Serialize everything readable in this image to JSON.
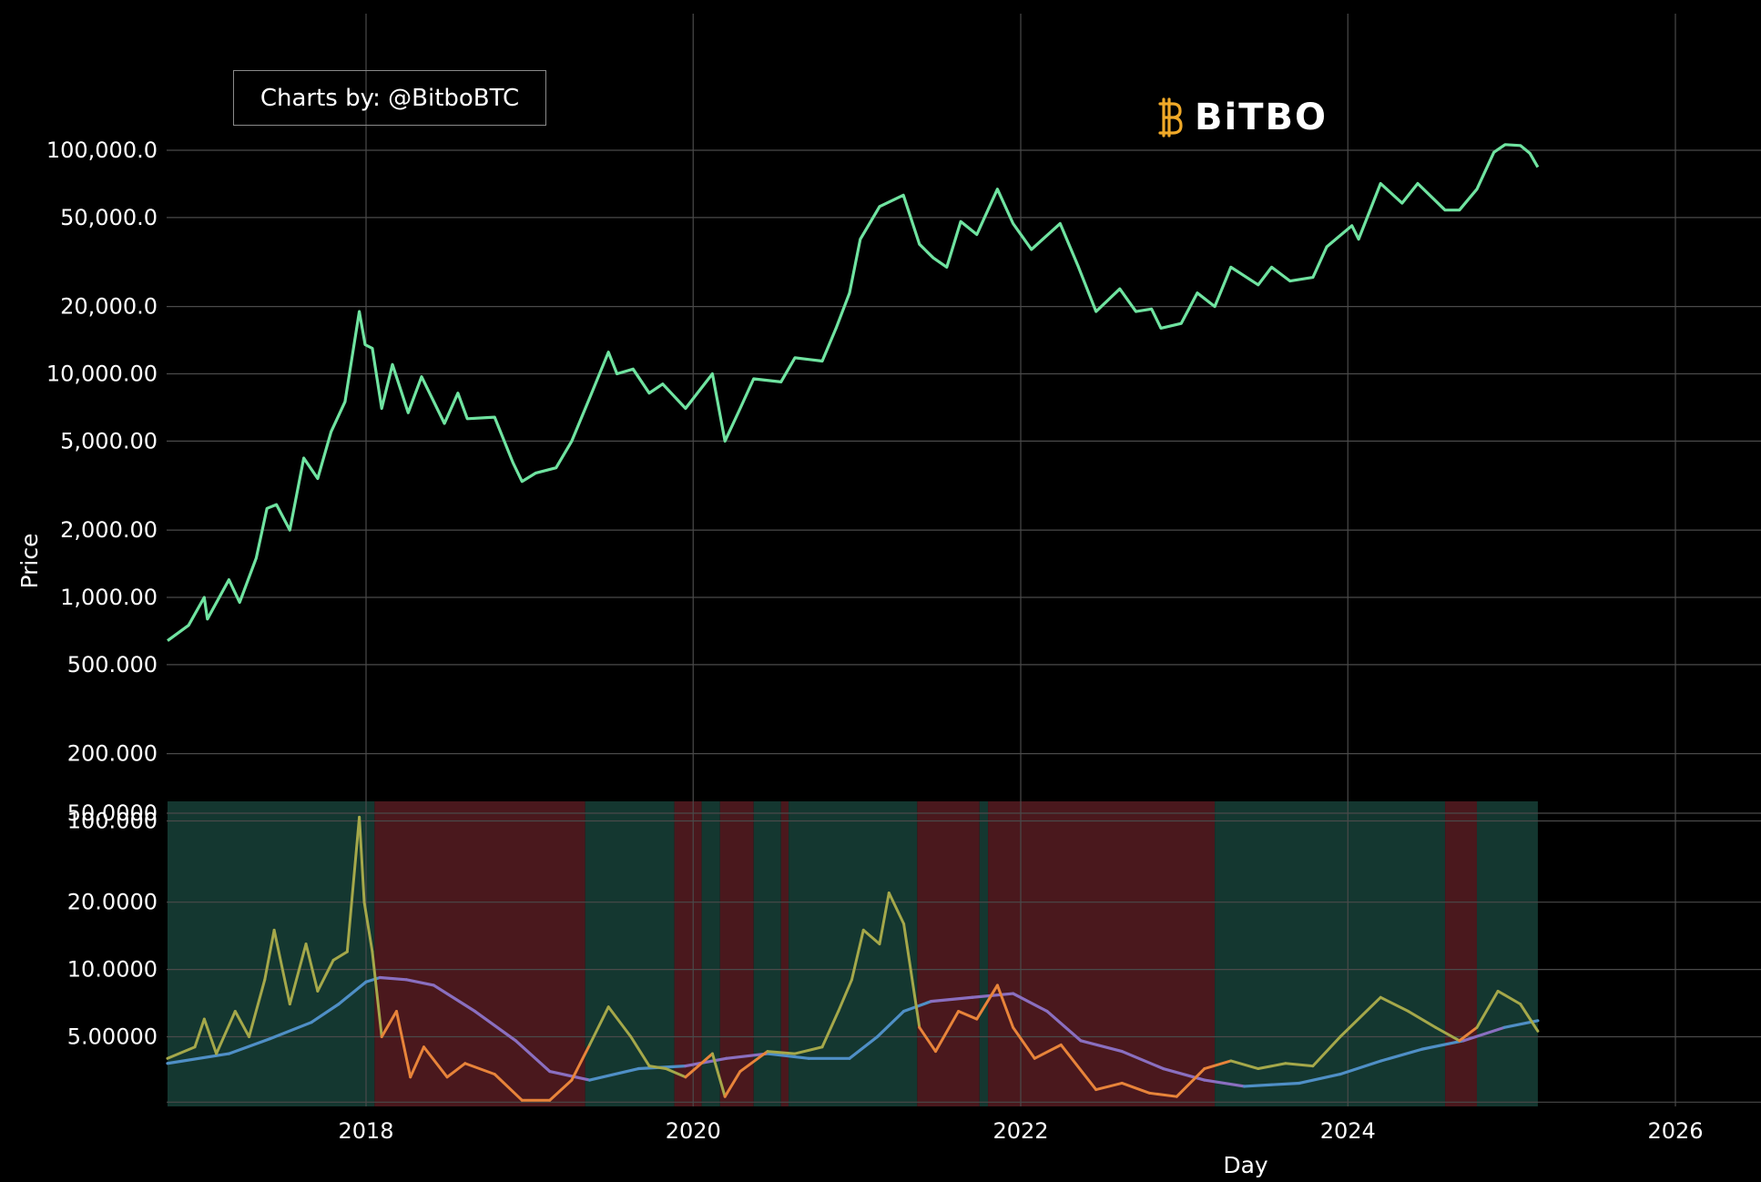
{
  "credit": "Charts by: @BitboBTC",
  "logo_text": "BiTBO",
  "colors": {
    "background": "#000000",
    "grid": "#4a4a4a",
    "price": "#6fe3a0",
    "above_band": "#a5a84a",
    "below_band": "#e8843a",
    "ma_low": "#4f8fc6",
    "ma_high": "#8a6fc0",
    "green_regime": "#143730",
    "red_regime": "#4a181d"
  },
  "chart_data": {
    "type": "line",
    "title": "",
    "xlabel": "Day",
    "ylabel": "Price",
    "x_ticks": [
      "2018",
      "2020",
      "2022",
      "2024",
      "2026"
    ],
    "x_range": [
      "2016-10-15",
      "2026-06-15"
    ],
    "price_panel": {
      "scale": "log",
      "y_ticks": [
        "100,000.0",
        "50,000.0",
        "20,000.0",
        "10,000.00",
        "5,000.00",
        "2,000.00",
        "1,000.00",
        "500.000",
        "200.000",
        "100.000"
      ],
      "series": [
        {
          "points": [
            [
              "2016-10-15",
              640
            ],
            [
              "2016-12-01",
              750
            ],
            [
              "2017-01-05",
              1000
            ],
            [
              "2017-01-12",
              800
            ],
            [
              "2017-03-01",
              1200
            ],
            [
              "2017-03-25",
              950
            ],
            [
              "2017-05-01",
              1500
            ],
            [
              "2017-05-25",
              2500
            ],
            [
              "2017-06-15",
              2600
            ],
            [
              "2017-07-15",
              2000
            ],
            [
              "2017-08-15",
              4200
            ],
            [
              "2017-09-15",
              3400
            ],
            [
              "2017-10-15",
              5500
            ],
            [
              "2017-11-15",
              7500
            ],
            [
              "2017-12-17",
              19000
            ],
            [
              "2017-12-30",
              13500
            ],
            [
              "2018-01-15",
              13000
            ],
            [
              "2018-02-05",
              7000
            ],
            [
              "2018-03-01",
              11000
            ],
            [
              "2018-04-05",
              6700
            ],
            [
              "2018-05-05",
              9700
            ],
            [
              "2018-06-25",
              6000
            ],
            [
              "2018-07-25",
              8200
            ],
            [
              "2018-08-15",
              6300
            ],
            [
              "2018-10-15",
              6400
            ],
            [
              "2018-11-25",
              4000
            ],
            [
              "2018-12-15",
              3300
            ],
            [
              "2019-01-15",
              3600
            ],
            [
              "2019-03-01",
              3800
            ],
            [
              "2019-04-05",
              5000
            ],
            [
              "2019-05-15",
              7800
            ],
            [
              "2019-06-26",
              12500
            ],
            [
              "2019-07-15",
              10000
            ],
            [
              "2019-08-20",
              10500
            ],
            [
              "2019-09-25",
              8200
            ],
            [
              "2019-10-25",
              9000
            ],
            [
              "2019-12-15",
              7000
            ],
            [
              "2020-02-13",
              10000
            ],
            [
              "2020-03-12",
              5000
            ],
            [
              "2020-04-15",
              7000
            ],
            [
              "2020-05-15",
              9500
            ],
            [
              "2020-07-15",
              9200
            ],
            [
              "2020-08-15",
              11800
            ],
            [
              "2020-10-15",
              11400
            ],
            [
              "2020-11-15",
              16000
            ],
            [
              "2020-12-15",
              23000
            ],
            [
              "2021-01-08",
              40000
            ],
            [
              "2021-02-20",
              56000
            ],
            [
              "2021-04-14",
              63000
            ],
            [
              "2021-05-20",
              38000
            ],
            [
              "2021-06-20",
              33000
            ],
            [
              "2021-07-20",
              30000
            ],
            [
              "2021-08-20",
              48000
            ],
            [
              "2021-09-25",
              42000
            ],
            [
              "2021-11-10",
              67000
            ],
            [
              "2021-12-15",
              47000
            ],
            [
              "2022-01-25",
              36000
            ],
            [
              "2022-03-30",
              47000
            ],
            [
              "2022-05-10",
              30000
            ],
            [
              "2022-06-18",
              19000
            ],
            [
              "2022-08-10",
              24000
            ],
            [
              "2022-09-15",
              19000
            ],
            [
              "2022-10-20",
              19500
            ],
            [
              "2022-11-10",
              16000
            ],
            [
              "2022-12-25",
              16800
            ],
            [
              "2023-01-30",
              23000
            ],
            [
              "2023-03-10",
              20000
            ],
            [
              "2023-04-15",
              30000
            ],
            [
              "2023-06-15",
              25000
            ],
            [
              "2023-07-15",
              30000
            ],
            [
              "2023-08-25",
              26000
            ],
            [
              "2023-10-15",
              27000
            ],
            [
              "2023-11-15",
              37000
            ],
            [
              "2024-01-10",
              46000
            ],
            [
              "2024-01-25",
              40000
            ],
            [
              "2024-03-14",
              71000
            ],
            [
              "2024-05-01",
              58000
            ],
            [
              "2024-06-05",
              71000
            ],
            [
              "2024-08-05",
              54000
            ],
            [
              "2024-09-06",
              54000
            ],
            [
              "2024-10-15",
              67000
            ],
            [
              "2024-11-22",
              98000
            ],
            [
              "2024-12-17",
              106000
            ],
            [
              "2025-01-20",
              105000
            ],
            [
              "2025-02-10",
              97000
            ],
            [
              "2025-02-28",
              84000
            ]
          ]
        }
      ]
    },
    "indicator_panel": {
      "scale": "log",
      "y_ticks": [
        "50.0000",
        "20.0000",
        "10.0000",
        "5.00000"
      ],
      "oscillator": [
        [
          "2016-10-15",
          4.0
        ],
        [
          "2016-12-15",
          4.5
        ],
        [
          "2017-01-05",
          6.0
        ],
        [
          "2017-02-01",
          4.2
        ],
        [
          "2017-03-15",
          6.5
        ],
        [
          "2017-04-15",
          5.0
        ],
        [
          "2017-05-20",
          9.0
        ],
        [
          "2017-06-10",
          15.0
        ],
        [
          "2017-07-15",
          7.0
        ],
        [
          "2017-08-20",
          13.0
        ],
        [
          "2017-09-15",
          8.0
        ],
        [
          "2017-10-20",
          11.0
        ],
        [
          "2017-11-20",
          12.0
        ],
        [
          "2017-12-17",
          48.0
        ],
        [
          "2017-12-28",
          20.0
        ],
        [
          "2018-01-15",
          12.0
        ],
        [
          "2018-02-05",
          5.0
        ],
        [
          "2018-03-10",
          6.5
        ],
        [
          "2018-04-10",
          3.3
        ],
        [
          "2018-05-10",
          4.5
        ],
        [
          "2018-07-01",
          3.3
        ],
        [
          "2018-08-10",
          3.8
        ],
        [
          "2018-10-15",
          3.4
        ],
        [
          "2018-12-15",
          2.6
        ],
        [
          "2019-02-15",
          2.6
        ],
        [
          "2019-04-05",
          3.2
        ],
        [
          "2019-05-15",
          4.6
        ],
        [
          "2019-06-26",
          6.8
        ],
        [
          "2019-08-15",
          5.0
        ],
        [
          "2019-09-25",
          3.7
        ],
        [
          "2019-11-01",
          3.6
        ],
        [
          "2019-12-15",
          3.3
        ],
        [
          "2020-02-13",
          4.2
        ],
        [
          "2020-03-12",
          2.7
        ],
        [
          "2020-04-15",
          3.5
        ],
        [
          "2020-06-15",
          4.3
        ],
        [
          "2020-08-15",
          4.2
        ],
        [
          "2020-10-15",
          4.5
        ],
        [
          "2020-11-20",
          6.5
        ],
        [
          "2020-12-20",
          9.0
        ],
        [
          "2021-01-15",
          15.0
        ],
        [
          "2021-02-20",
          13.0
        ],
        [
          "2021-03-13",
          22.0
        ],
        [
          "2021-04-15",
          16.0
        ],
        [
          "2021-05-20",
          5.5
        ],
        [
          "2021-06-25",
          4.3
        ],
        [
          "2021-08-15",
          6.5
        ],
        [
          "2021-09-25",
          6.0
        ],
        [
          "2021-11-10",
          8.5
        ],
        [
          "2021-12-15",
          5.5
        ],
        [
          "2022-02-01",
          4.0
        ],
        [
          "2022-04-01",
          4.6
        ],
        [
          "2022-06-18",
          2.9
        ],
        [
          "2022-08-15",
          3.1
        ],
        [
          "2022-10-15",
          2.8
        ],
        [
          "2022-12-15",
          2.7
        ],
        [
          "2023-02-15",
          3.6
        ],
        [
          "2023-04-15",
          3.9
        ],
        [
          "2023-06-15",
          3.6
        ],
        [
          "2023-08-15",
          3.8
        ],
        [
          "2023-10-15",
          3.7
        ],
        [
          "2023-12-15",
          5.0
        ],
        [
          "2024-03-14",
          7.5
        ],
        [
          "2024-05-15",
          6.5
        ],
        [
          "2024-07-15",
          5.5
        ],
        [
          "2024-09-06",
          4.8
        ],
        [
          "2024-10-15",
          5.5
        ],
        [
          "2024-12-01",
          8.0
        ],
        [
          "2025-01-20",
          7.0
        ],
        [
          "2025-02-28",
          5.3
        ]
      ],
      "moving_average": [
        [
          "2016-10-15",
          3.8
        ],
        [
          "2017-03-01",
          4.2
        ],
        [
          "2017-06-01",
          4.9
        ],
        [
          "2017-09-01",
          5.8
        ],
        [
          "2017-11-01",
          7.0
        ],
        [
          "2018-01-01",
          8.8
        ],
        [
          "2018-02-01",
          9.2
        ],
        [
          "2018-04-01",
          9.0
        ],
        [
          "2018-06-01",
          8.5
        ],
        [
          "2018-09-01",
          6.5
        ],
        [
          "2018-12-01",
          4.8
        ],
        [
          "2019-02-15",
          3.5
        ],
        [
          "2019-05-15",
          3.2
        ],
        [
          "2019-09-01",
          3.6
        ],
        [
          "2019-12-15",
          3.7
        ],
        [
          "2020-03-15",
          4.0
        ],
        [
          "2020-06-15",
          4.2
        ],
        [
          "2020-09-15",
          4.0
        ],
        [
          "2020-12-15",
          4.0
        ],
        [
          "2021-02-15",
          5.0
        ],
        [
          "2021-04-15",
          6.5
        ],
        [
          "2021-06-15",
          7.2
        ],
        [
          "2021-09-15",
          7.5
        ],
        [
          "2021-12-15",
          7.8
        ],
        [
          "2022-03-01",
          6.5
        ],
        [
          "2022-05-15",
          4.8
        ],
        [
          "2022-08-15",
          4.3
        ],
        [
          "2022-11-15",
          3.6
        ],
        [
          "2023-02-15",
          3.2
        ],
        [
          "2023-05-15",
          3.0
        ],
        [
          "2023-09-15",
          3.1
        ],
        [
          "2023-12-15",
          3.4
        ],
        [
          "2024-03-15",
          3.9
        ],
        [
          "2024-06-15",
          4.4
        ],
        [
          "2024-09-15",
          4.8
        ],
        [
          "2024-12-15",
          5.5
        ],
        [
          "2025-02-28",
          5.9
        ]
      ],
      "regimes": [
        [
          "2016-10-15",
          "2018-01-20",
          "green"
        ],
        [
          "2018-01-20",
          "2019-05-05",
          "red"
        ],
        [
          "2019-05-05",
          "2019-11-20",
          "green"
        ],
        [
          "2019-11-20",
          "2020-01-20",
          "red"
        ],
        [
          "2020-01-20",
          "2020-03-01",
          "green"
        ],
        [
          "2020-03-01",
          "2020-05-15",
          "red"
        ],
        [
          "2020-05-15",
          "2020-07-15",
          "green"
        ],
        [
          "2020-07-15",
          "2020-08-01",
          "red"
        ],
        [
          "2020-08-01",
          "2021-05-15",
          "green"
        ],
        [
          "2021-05-15",
          "2021-10-01",
          "red"
        ],
        [
          "2021-10-01",
          "2021-10-20",
          "green"
        ],
        [
          "2021-10-20",
          "2023-03-10",
          "red"
        ],
        [
          "2023-03-10",
          "2024-08-05",
          "green"
        ],
        [
          "2024-08-05",
          "2024-10-15",
          "red"
        ],
        [
          "2024-10-15",
          "2025-02-28",
          "green"
        ]
      ]
    }
  }
}
